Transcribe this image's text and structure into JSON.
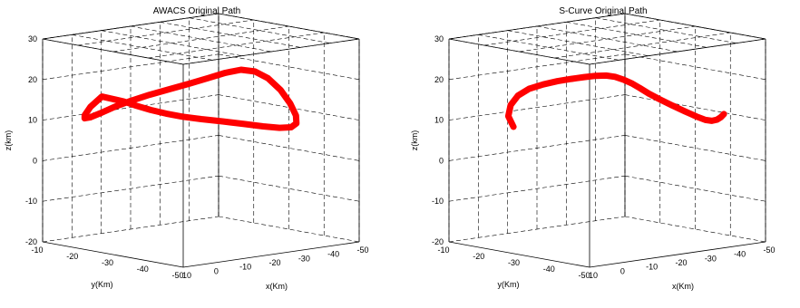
{
  "chart_data": [
    {
      "type": "line",
      "projection": "3d",
      "title": "AWACS Original Path",
      "xlabel": "x(Km)",
      "ylabel": "y(Km)",
      "zlabel": "z(km)",
      "xlim": [
        10,
        -50
      ],
      "ylim": [
        -10,
        -50
      ],
      "zlim": [
        -20,
        30
      ],
      "xticks": [
        "10",
        "0",
        "-10",
        "-20",
        "-30",
        "-40",
        "-50"
      ],
      "yticks": [
        "-10",
        "-20",
        "-30",
        "-40",
        "-50"
      ],
      "zticks": [
        "-20",
        "-10",
        "0",
        "10",
        "20",
        "30"
      ],
      "grid": true,
      "series": [
        {
          "color": "#ff0000",
          "x": [
            -1.5,
            -3.2,
            -4.9,
            -6.6,
            -8.2,
            -10.1,
            -12.5,
            -15.6,
            -19.3,
            -23.8,
            -28.7,
            -33.4,
            -37.3,
            -39.9,
            -40.8,
            -40.0,
            -37.8,
            -34.5,
            -30.4,
            -25.7,
            -20.8,
            -15.8,
            -10.8,
            -5.7,
            -1.0,
            3.2,
            6.3,
            7.8,
            7.5,
            5.8,
            3.0,
            -1.5
          ],
          "y": [
            -23.5,
            -25.7,
            -28.3,
            -31.3,
            -34.6,
            -38.4,
            -42.4,
            -46.0,
            -48.3,
            -49.2,
            -48.4,
            -46.0,
            -42.6,
            -38.8,
            -35.3,
            -32.4,
            -30.5,
            -29.3,
            -28.3,
            -27.2,
            -25.8,
            -24.3,
            -23.0,
            -22.0,
            -21.3,
            -20.8,
            -20.4,
            -20.1,
            -19.9,
            -20.1,
            -21.0,
            -23.5
          ],
          "z": [
            15.5,
            14.6,
            13.8,
            13.2,
            12.8,
            12.6,
            12.4,
            12.0,
            11.4,
            10.7,
            10.2,
            10.3,
            11.3,
            13.4,
            16.1,
            18.6,
            20.2,
            20.8,
            20.3,
            19.3,
            18.2,
            17.1,
            16.1,
            15.0,
            13.9,
            12.7,
            11.9,
            11.8,
            12.5,
            14.4,
            16.8,
            15.5
          ]
        }
      ]
    },
    {
      "type": "line",
      "projection": "3d",
      "title": "S-Curve Original Path",
      "xlabel": "x(Km)",
      "ylabel": "y(Km)",
      "zlabel": "z(km)",
      "xlim": [
        10,
        -50
      ],
      "ylim": [
        -10,
        -50
      ],
      "zlim": [
        -20,
        30
      ],
      "xticks": [
        "10",
        "0",
        "-10",
        "-20",
        "-30",
        "-40",
        "-50"
      ],
      "yticks": [
        "-10",
        "-20",
        "-30",
        "-40",
        "-50"
      ],
      "zticks": [
        "-20",
        "-10",
        "0",
        "10",
        "20",
        "30"
      ],
      "grid": true,
      "series": [
        {
          "color": "#ff0000",
          "x": [
            1.8,
            4.4,
            5.5,
            4.8,
            2.8,
            -0.2,
            -3.3,
            -6.2,
            -8.8,
            -11.0,
            -12.9,
            -14.5,
            -16.2,
            -18.1,
            -20.3,
            -22.8,
            -25.4,
            -28.0,
            -30.3,
            -32.2,
            -33.7,
            -34.8,
            -35.7,
            -36.4,
            -37.0
          ],
          "y": [
            -21.5,
            -22.2,
            -23.8,
            -25.3,
            -26.8,
            -28.3,
            -29.8,
            -31.3,
            -32.8,
            -34.2,
            -35.6,
            -36.8,
            -37.8,
            -38.5,
            -39.0,
            -39.5,
            -40.4,
            -41.9,
            -43.5,
            -45.2,
            -46.5,
            -47.4,
            -48.1,
            -48.6,
            -49.0
          ],
          "z": [
            9.3,
            12.3,
            15.4,
            17.9,
            19.6,
            20.6,
            21.3,
            21.8,
            22.2,
            22.5,
            22.6,
            22.3,
            21.6,
            20.6,
            19.3,
            17.7,
            16.2,
            14.6,
            13.2,
            12.0,
            11.2,
            11.0,
            11.3,
            11.9,
            12.7
          ]
        }
      ]
    }
  ]
}
